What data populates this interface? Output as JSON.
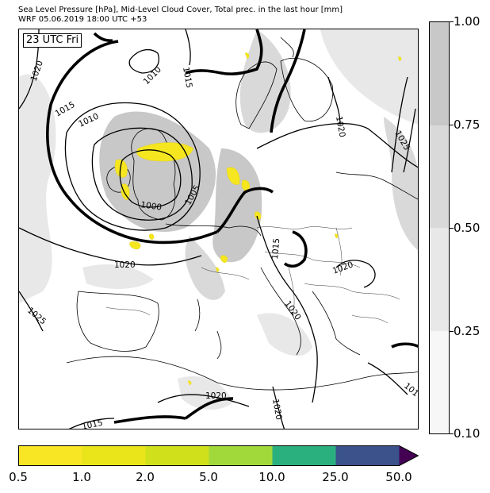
{
  "header": {
    "title_line1": "Sea Level Pressure [hPa], Mid-Level Cloud Cover, Total prec. in the last hour [mm]",
    "title_line2": "WRF 05.06.2019 18:00 UTC +53"
  },
  "map": {
    "time_label": "23 UTC Fri",
    "isobar_labels": [
      "1020",
      "1010",
      "1015",
      "1015",
      "1010",
      "1005",
      "1000",
      "1020",
      "1025",
      "1020",
      "1015",
      "1020",
      "1020",
      "1025",
      "1020",
      "1015",
      "1020",
      "101"
    ],
    "colors": {
      "land": "#ffffff",
      "cloud_heavy": "#c8c8c8",
      "cloud_medium": "#d9d9d9",
      "precip_yellow": "#f5e61f",
      "isobar": "#000000"
    }
  },
  "cloud_colorbar": {
    "labels": [
      "1.00",
      "0.75",
      "0.50",
      "0.25",
      "0.10"
    ],
    "colors": [
      "#c8c8c8",
      "#d9d9d9",
      "#e8e8e8",
      "#f7f7f7"
    ]
  },
  "precip_colorbar": {
    "labels": [
      "0.5",
      "1.0",
      "2.0",
      "5.0",
      "10.0",
      "25.0",
      "50.0"
    ],
    "colors": [
      "#f8e523",
      "#eae51a",
      "#d0e11c",
      "#a2d93a",
      "#47bf6b",
      "#2ab07f",
      "#3b528b"
    ],
    "extend_color": "#440154"
  }
}
